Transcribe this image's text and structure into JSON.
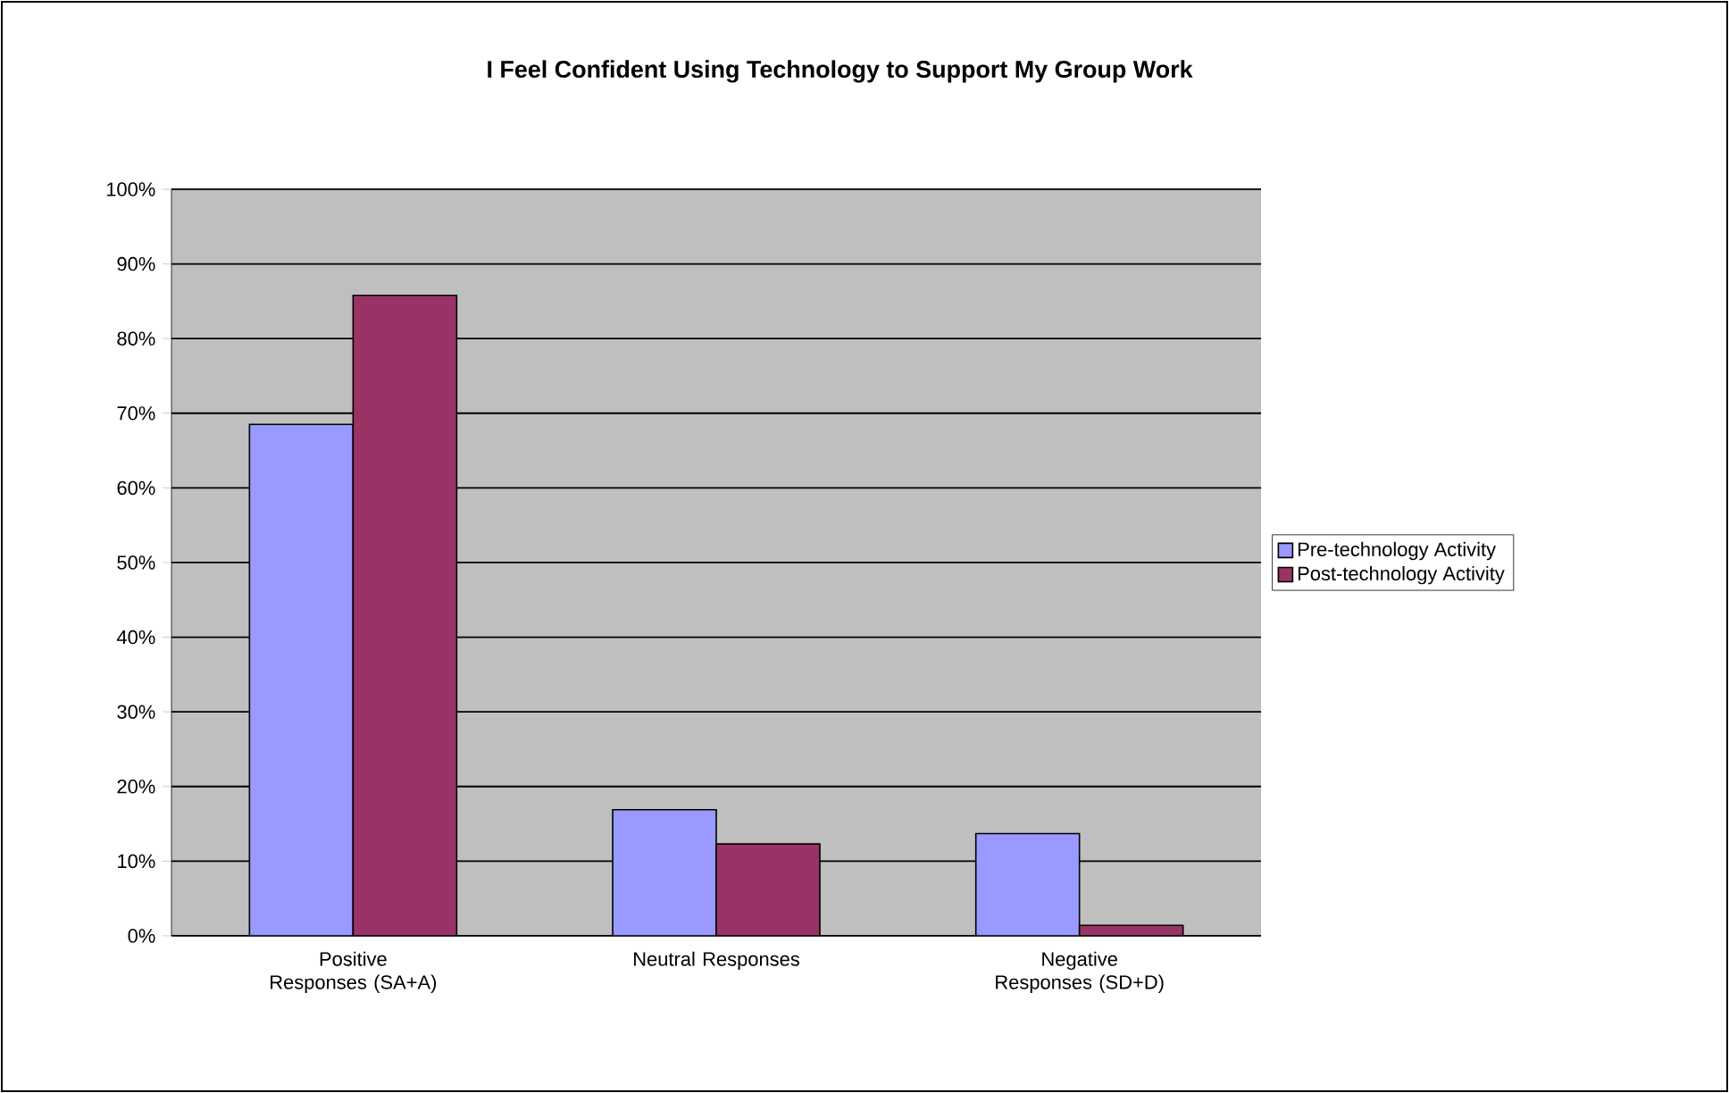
{
  "chart_data": {
    "type": "bar",
    "title": "I Feel Confident Using Technology to Support My Group Work",
    "categories": [
      "Positive Responses (SA+A)",
      "Neutral Responses",
      "Negative Responses (SD+D)"
    ],
    "series": [
      {
        "name": "Pre-technology Activity",
        "color": "#9999ff",
        "values": [
          68.5,
          16.9,
          13.7
        ]
      },
      {
        "name": "Post-technology Activity",
        "color": "#993366",
        "values": [
          85.8,
          12.3,
          1.4
        ]
      }
    ],
    "ylim": [
      0,
      100
    ],
    "yticks": [
      {
        "value": 0,
        "label": "0%"
      },
      {
        "value": 10,
        "label": "10%"
      },
      {
        "value": 20,
        "label": "20%"
      },
      {
        "value": 30,
        "label": "30%"
      },
      {
        "value": 40,
        "label": "40%"
      },
      {
        "value": 50,
        "label": "50%"
      },
      {
        "value": 60,
        "label": "60%"
      },
      {
        "value": 70,
        "label": "70%"
      },
      {
        "value": 80,
        "label": "80%"
      },
      {
        "value": 90,
        "label": "90%"
      },
      {
        "value": 100,
        "label": "100%"
      }
    ],
    "grid": "y",
    "legend": "right"
  }
}
